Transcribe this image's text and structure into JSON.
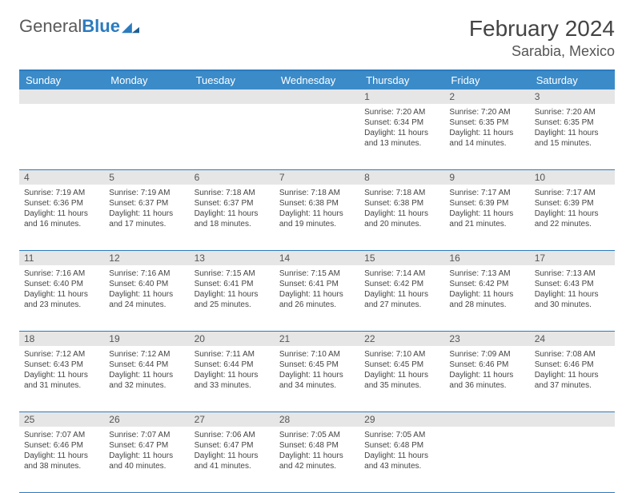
{
  "brand": {
    "part1": "General",
    "part2": "Blue"
  },
  "title": "February 2024",
  "location": "Sarabia, Mexico",
  "colors": {
    "header_bg": "#3b8bc9",
    "border": "#2b7bbf",
    "daynum_bg": "#e6e6e6",
    "text": "#444444"
  },
  "day_names": [
    "Sunday",
    "Monday",
    "Tuesday",
    "Wednesday",
    "Thursday",
    "Friday",
    "Saturday"
  ],
  "weeks": [
    [
      {
        "n": "",
        "sr": "",
        "ss": "",
        "dl": ""
      },
      {
        "n": "",
        "sr": "",
        "ss": "",
        "dl": ""
      },
      {
        "n": "",
        "sr": "",
        "ss": "",
        "dl": ""
      },
      {
        "n": "",
        "sr": "",
        "ss": "",
        "dl": ""
      },
      {
        "n": "1",
        "sr": "Sunrise: 7:20 AM",
        "ss": "Sunset: 6:34 PM",
        "dl": "Daylight: 11 hours and 13 minutes."
      },
      {
        "n": "2",
        "sr": "Sunrise: 7:20 AM",
        "ss": "Sunset: 6:35 PM",
        "dl": "Daylight: 11 hours and 14 minutes."
      },
      {
        "n": "3",
        "sr": "Sunrise: 7:20 AM",
        "ss": "Sunset: 6:35 PM",
        "dl": "Daylight: 11 hours and 15 minutes."
      }
    ],
    [
      {
        "n": "4",
        "sr": "Sunrise: 7:19 AM",
        "ss": "Sunset: 6:36 PM",
        "dl": "Daylight: 11 hours and 16 minutes."
      },
      {
        "n": "5",
        "sr": "Sunrise: 7:19 AM",
        "ss": "Sunset: 6:37 PM",
        "dl": "Daylight: 11 hours and 17 minutes."
      },
      {
        "n": "6",
        "sr": "Sunrise: 7:18 AM",
        "ss": "Sunset: 6:37 PM",
        "dl": "Daylight: 11 hours and 18 minutes."
      },
      {
        "n": "7",
        "sr": "Sunrise: 7:18 AM",
        "ss": "Sunset: 6:38 PM",
        "dl": "Daylight: 11 hours and 19 minutes."
      },
      {
        "n": "8",
        "sr": "Sunrise: 7:18 AM",
        "ss": "Sunset: 6:38 PM",
        "dl": "Daylight: 11 hours and 20 minutes."
      },
      {
        "n": "9",
        "sr": "Sunrise: 7:17 AM",
        "ss": "Sunset: 6:39 PM",
        "dl": "Daylight: 11 hours and 21 minutes."
      },
      {
        "n": "10",
        "sr": "Sunrise: 7:17 AM",
        "ss": "Sunset: 6:39 PM",
        "dl": "Daylight: 11 hours and 22 minutes."
      }
    ],
    [
      {
        "n": "11",
        "sr": "Sunrise: 7:16 AM",
        "ss": "Sunset: 6:40 PM",
        "dl": "Daylight: 11 hours and 23 minutes."
      },
      {
        "n": "12",
        "sr": "Sunrise: 7:16 AM",
        "ss": "Sunset: 6:40 PM",
        "dl": "Daylight: 11 hours and 24 minutes."
      },
      {
        "n": "13",
        "sr": "Sunrise: 7:15 AM",
        "ss": "Sunset: 6:41 PM",
        "dl": "Daylight: 11 hours and 25 minutes."
      },
      {
        "n": "14",
        "sr": "Sunrise: 7:15 AM",
        "ss": "Sunset: 6:41 PM",
        "dl": "Daylight: 11 hours and 26 minutes."
      },
      {
        "n": "15",
        "sr": "Sunrise: 7:14 AM",
        "ss": "Sunset: 6:42 PM",
        "dl": "Daylight: 11 hours and 27 minutes."
      },
      {
        "n": "16",
        "sr": "Sunrise: 7:13 AM",
        "ss": "Sunset: 6:42 PM",
        "dl": "Daylight: 11 hours and 28 minutes."
      },
      {
        "n": "17",
        "sr": "Sunrise: 7:13 AM",
        "ss": "Sunset: 6:43 PM",
        "dl": "Daylight: 11 hours and 30 minutes."
      }
    ],
    [
      {
        "n": "18",
        "sr": "Sunrise: 7:12 AM",
        "ss": "Sunset: 6:43 PM",
        "dl": "Daylight: 11 hours and 31 minutes."
      },
      {
        "n": "19",
        "sr": "Sunrise: 7:12 AM",
        "ss": "Sunset: 6:44 PM",
        "dl": "Daylight: 11 hours and 32 minutes."
      },
      {
        "n": "20",
        "sr": "Sunrise: 7:11 AM",
        "ss": "Sunset: 6:44 PM",
        "dl": "Daylight: 11 hours and 33 minutes."
      },
      {
        "n": "21",
        "sr": "Sunrise: 7:10 AM",
        "ss": "Sunset: 6:45 PM",
        "dl": "Daylight: 11 hours and 34 minutes."
      },
      {
        "n": "22",
        "sr": "Sunrise: 7:10 AM",
        "ss": "Sunset: 6:45 PM",
        "dl": "Daylight: 11 hours and 35 minutes."
      },
      {
        "n": "23",
        "sr": "Sunrise: 7:09 AM",
        "ss": "Sunset: 6:46 PM",
        "dl": "Daylight: 11 hours and 36 minutes."
      },
      {
        "n": "24",
        "sr": "Sunrise: 7:08 AM",
        "ss": "Sunset: 6:46 PM",
        "dl": "Daylight: 11 hours and 37 minutes."
      }
    ],
    [
      {
        "n": "25",
        "sr": "Sunrise: 7:07 AM",
        "ss": "Sunset: 6:46 PM",
        "dl": "Daylight: 11 hours and 38 minutes."
      },
      {
        "n": "26",
        "sr": "Sunrise: 7:07 AM",
        "ss": "Sunset: 6:47 PM",
        "dl": "Daylight: 11 hours and 40 minutes."
      },
      {
        "n": "27",
        "sr": "Sunrise: 7:06 AM",
        "ss": "Sunset: 6:47 PM",
        "dl": "Daylight: 11 hours and 41 minutes."
      },
      {
        "n": "28",
        "sr": "Sunrise: 7:05 AM",
        "ss": "Sunset: 6:48 PM",
        "dl": "Daylight: 11 hours and 42 minutes."
      },
      {
        "n": "29",
        "sr": "Sunrise: 7:05 AM",
        "ss": "Sunset: 6:48 PM",
        "dl": "Daylight: 11 hours and 43 minutes."
      },
      {
        "n": "",
        "sr": "",
        "ss": "",
        "dl": ""
      },
      {
        "n": "",
        "sr": "",
        "ss": "",
        "dl": ""
      }
    ]
  ]
}
